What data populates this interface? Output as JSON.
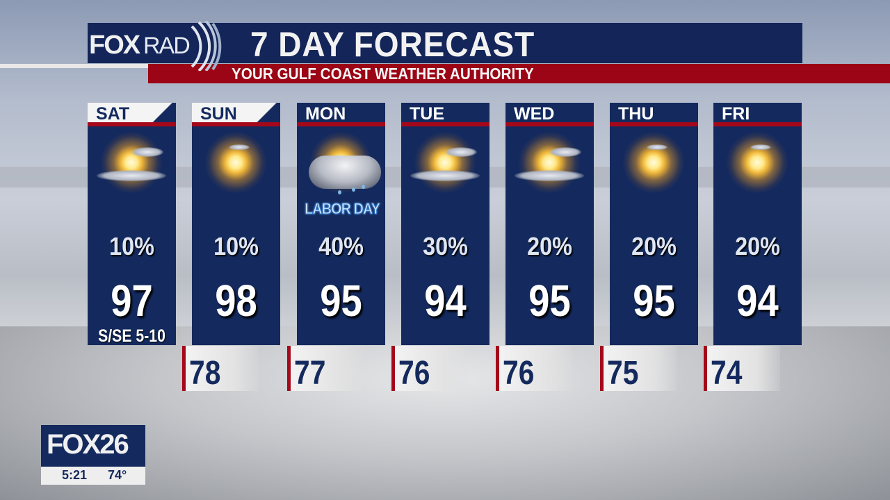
{
  "header": {
    "logo_text": "FOXRAD",
    "title": "7 DAY FORECAST",
    "subtitle": "YOUR GULF COAST WEATHER AUTHORITY"
  },
  "days": [
    {
      "day": "SAT",
      "icon": "sun-partly-cloudy-icon",
      "precip_chance": "10%",
      "high": "97",
      "wind": "S/SE 5-10",
      "header_style": "light"
    },
    {
      "day": "SUN",
      "icon": "sunny-icon",
      "precip_chance": "10%",
      "high": "98",
      "low": "78",
      "header_style": "light"
    },
    {
      "day": "MON",
      "icon": "sun-cloud-rain-icon",
      "note": "LABOR DAY",
      "precip_chance": "40%",
      "high": "95",
      "low": "77"
    },
    {
      "day": "TUE",
      "icon": "sun-partly-cloudy-icon",
      "precip_chance": "30%",
      "high": "94",
      "low": "76"
    },
    {
      "day": "WED",
      "icon": "sun-partly-cloudy-icon",
      "precip_chance": "20%",
      "high": "95",
      "low": "76"
    },
    {
      "day": "THU",
      "icon": "sunny-icon",
      "precip_chance": "20%",
      "high": "95",
      "low": "75"
    },
    {
      "day": "FRI",
      "icon": "sunny-icon",
      "precip_chance": "20%",
      "high": "94",
      "low": "74"
    }
  ],
  "station_bug": {
    "name": "FOX26",
    "time": "5:21",
    "temperature": "74°"
  },
  "colors": {
    "navy": "#142a5e",
    "red": "#a4081a",
    "title_navy": "#132559"
  }
}
